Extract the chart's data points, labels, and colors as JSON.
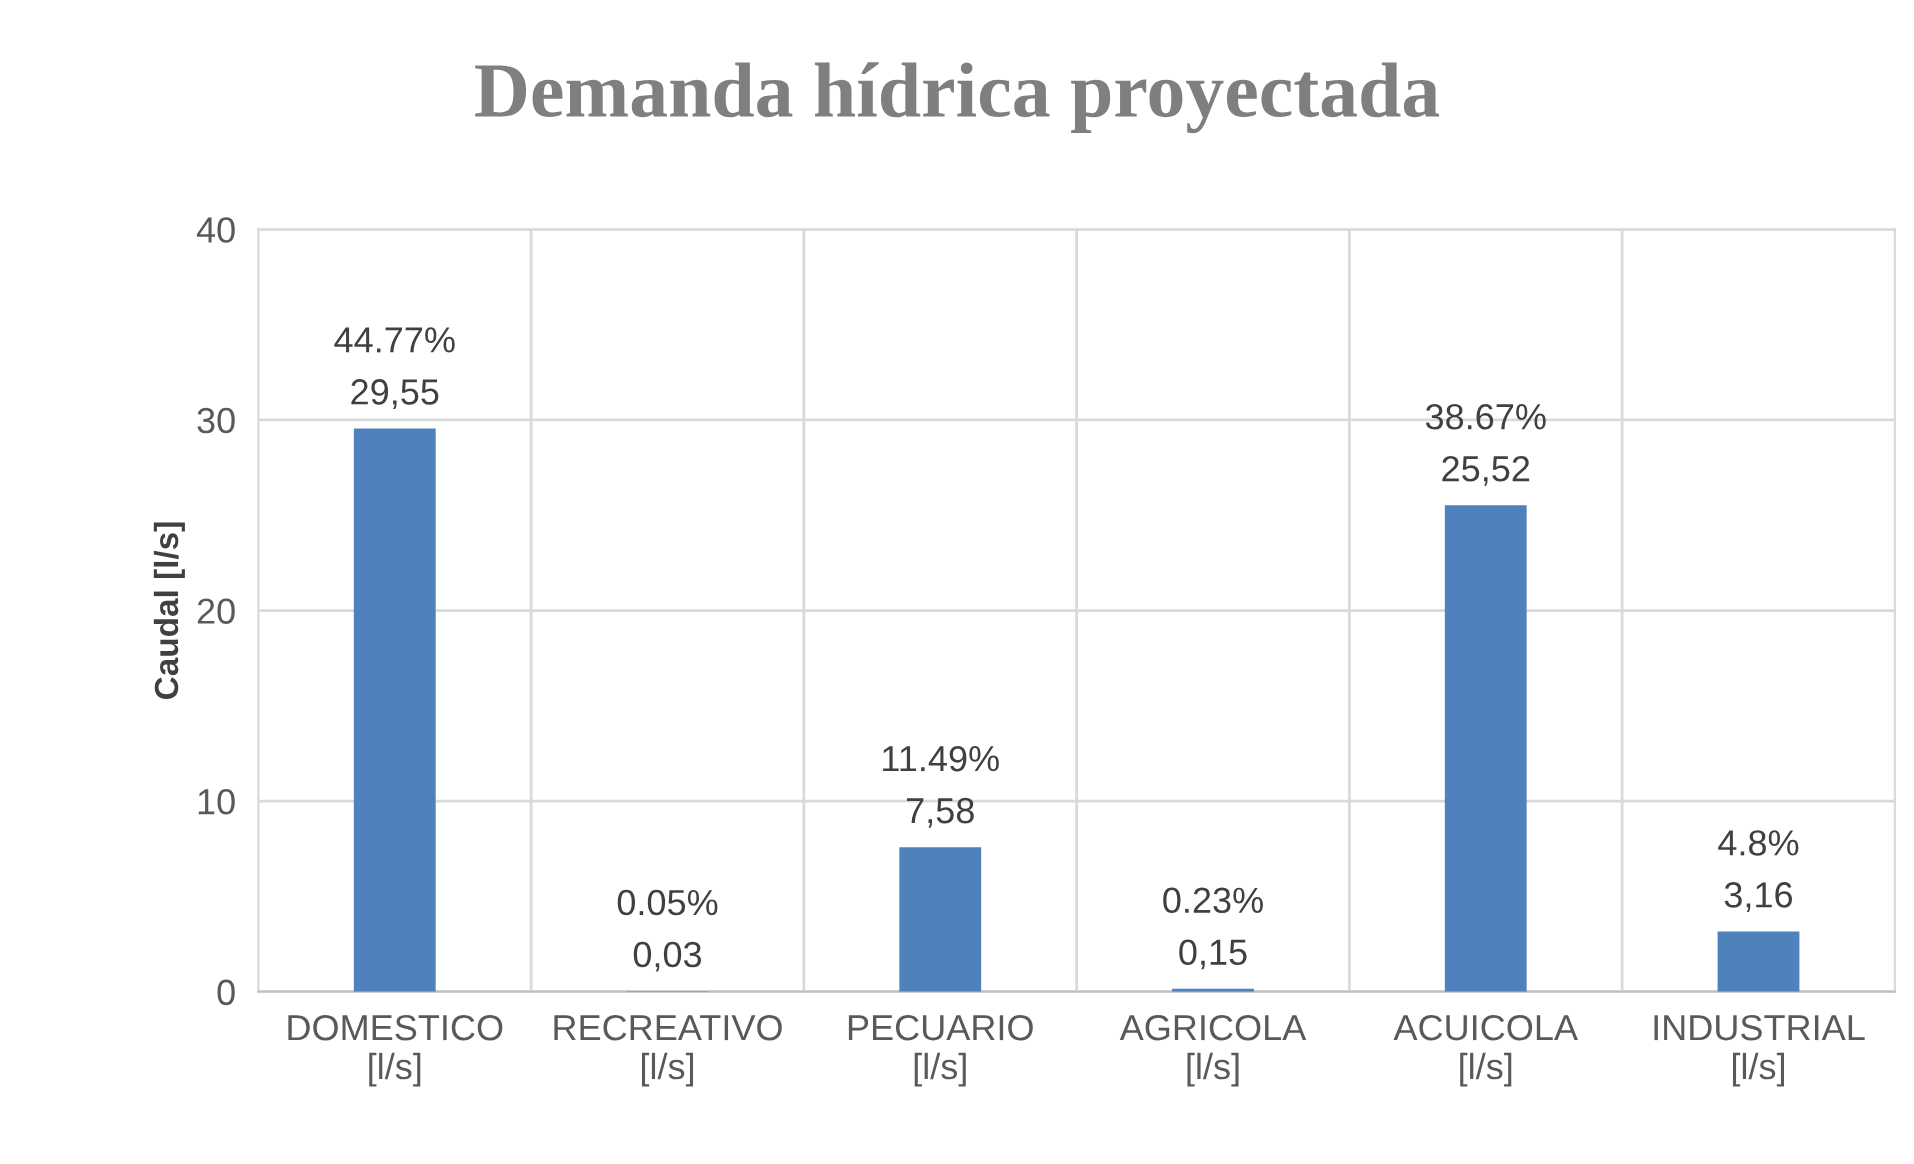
{
  "chart_data": {
    "type": "bar",
    "title": "Demanda hídrica proyectada",
    "ylabel": "Caudal [l/s]",
    "categories": [
      "DOMESTICO\n[l/s]",
      "RECREATIVO\n[l/s]",
      "PECUARIO\n[l/s]",
      "AGRICOLA\n[l/s]",
      "ACUICOLA\n[l/s]",
      "INDUSTRIAL\n[l/s]"
    ],
    "values": [
      29.55,
      0.03,
      7.58,
      0.15,
      25.52,
      3.16
    ],
    "value_labels": [
      "44.77%\n29,55",
      "0.05%\n0,03",
      "11.49%\n7,58",
      "0.23%\n0,15",
      "38.67%\n25,52",
      "4.8%\n3,16"
    ],
    "color": "#4f81bd",
    "ylim": [
      0,
      40
    ],
    "yticks": [
      0,
      10,
      20,
      30,
      40
    ],
    "grid": true,
    "legend": false
  }
}
